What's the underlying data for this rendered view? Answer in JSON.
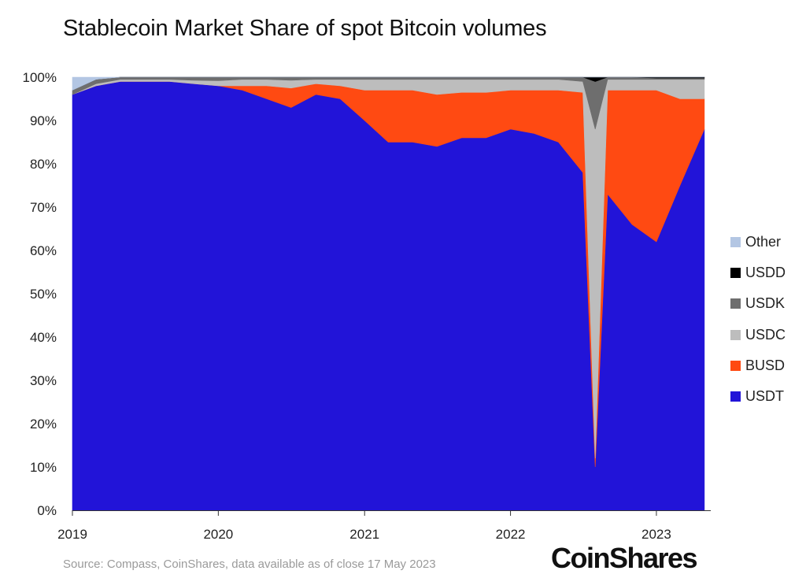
{
  "title": "Stablecoin Market Share of spot Bitcoin volumes",
  "source": "Source: Compass, CoinShares, data available as of close 17 May 2023",
  "brand": "CoinShares",
  "chart_data": {
    "type": "area",
    "stacked": true,
    "title": "Stablecoin Market Share of spot Bitcoin volumes",
    "xlabel": "",
    "ylabel": "",
    "x_ticks": [
      "2019",
      "2020",
      "2021",
      "2022",
      "2023"
    ],
    "y_ticks": [
      "0%",
      "10%",
      "20%",
      "30%",
      "40%",
      "50%",
      "60%",
      "70%",
      "80%",
      "90%",
      "100%"
    ],
    "xlim": [
      "2019-01-01",
      "2023-05-17"
    ],
    "ylim": [
      0,
      100
    ],
    "grid": false,
    "legend_position": "right",
    "x": [
      "2019-01",
      "2019-03",
      "2019-05",
      "2019-07",
      "2019-09",
      "2019-11",
      "2020-01",
      "2020-03",
      "2020-05",
      "2020-07",
      "2020-09",
      "2020-11",
      "2021-01",
      "2021-03",
      "2021-05",
      "2021-07",
      "2021-09",
      "2021-11",
      "2022-01",
      "2022-03",
      "2022-05",
      "2022-07",
      "2022-08",
      "2022-09",
      "2022-11",
      "2023-01",
      "2023-03",
      "2023-05"
    ],
    "series": [
      {
        "name": "USDT",
        "color": "#2214d8",
        "values": [
          96,
          98,
          99,
          99,
          99,
          98.5,
          98,
          97,
          95,
          93,
          96,
          95,
          90,
          85,
          85,
          84,
          86,
          86,
          88,
          87,
          85,
          78,
          10,
          73,
          66,
          62,
          75,
          88
        ]
      },
      {
        "name": "BUSD",
        "color": "#ff4a12",
        "values": [
          0,
          0,
          0,
          0,
          0,
          0,
          0,
          1,
          3,
          4.5,
          2.5,
          3,
          7,
          12,
          12,
          12,
          10.5,
          10.5,
          9,
          10,
          12,
          18.5,
          2,
          24,
          31,
          35,
          20,
          7
        ]
      },
      {
        "name": "USDC",
        "color": "#bdbdbd",
        "values": [
          0,
          0.5,
          0.5,
          0.5,
          0.5,
          0.8,
          1.2,
          1.5,
          1.5,
          1.8,
          1,
          1.5,
          2.5,
          2.5,
          2.5,
          3.5,
          3,
          3,
          2.5,
          2.5,
          2.5,
          2.5,
          76,
          2.5,
          2.5,
          2.5,
          4.5,
          4.5
        ]
      },
      {
        "name": "USDK",
        "color": "#6e6e6e",
        "values": [
          1,
          1,
          0.5,
          0.5,
          0.5,
          0.7,
          0.8,
          0.5,
          0.5,
          0.7,
          0.5,
          0.5,
          0.5,
          0.5,
          0.5,
          0.5,
          0.5,
          0.5,
          0.5,
          0.5,
          0.5,
          1,
          11,
          0.5,
          0.5,
          0.3,
          0.3,
          0.3
        ]
      },
      {
        "name": "USDD",
        "color": "#000000",
        "values": [
          0,
          0,
          0,
          0,
          0,
          0,
          0,
          0,
          0,
          0,
          0,
          0,
          0,
          0,
          0,
          0,
          0,
          0,
          0,
          0,
          0,
          0,
          1,
          0,
          0,
          0.2,
          0.2,
          0.2
        ]
      },
      {
        "name": "Other",
        "color": "#b3c6e3",
        "values": [
          3,
          0.5,
          0,
          0,
          0,
          0,
          0,
          0,
          0,
          0,
          0,
          0,
          0,
          0,
          0,
          0,
          0,
          0,
          0,
          0,
          0,
          0,
          0,
          0,
          0,
          0,
          0,
          0
        ]
      }
    ]
  }
}
